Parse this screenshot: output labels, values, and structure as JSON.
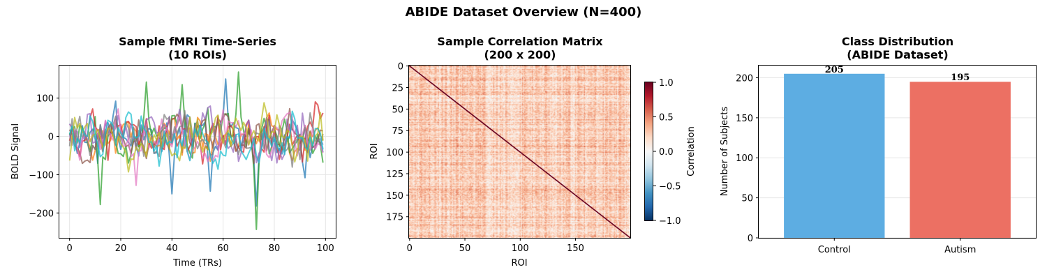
{
  "figure": {
    "suptitle": "ABIDE Dataset Overview (N=400)"
  },
  "chart_data": [
    {
      "type": "line",
      "title_line1": "Sample fMRI Time-Series",
      "title_line2": "(10 ROIs)",
      "xlabel": "Time (TRs)",
      "ylabel": "BOLD Signal",
      "xlim": [
        -4,
        104
      ],
      "ylim": [
        -265,
        185
      ],
      "xticks": [
        0,
        20,
        40,
        60,
        80,
        100
      ],
      "yticks": [
        100,
        0,
        -100,
        -200
      ],
      "ytick_labels": [
        "100",
        "0",
        "−100",
        "−200"
      ],
      "grid": true,
      "n_series": 10,
      "n_points": 100,
      "colors": [
        "#1f77b4",
        "#ff7f0e",
        "#2ca02c",
        "#d62728",
        "#9467bd",
        "#8c564b",
        "#e377c2",
        "#7f7f7f",
        "#bcbd22",
        "#17becf"
      ],
      "series_peaks": [
        {
          "series": 2,
          "x": 66,
          "y": 168
        },
        {
          "series": 0,
          "x": 61,
          "y": 150
        },
        {
          "series": 2,
          "x": 30,
          "y": 142
        },
        {
          "series": 2,
          "x": 44,
          "y": 135
        },
        {
          "series": 2,
          "x": 73,
          "y": -243
        },
        {
          "series": 0,
          "x": 73,
          "y": -182
        },
        {
          "series": 2,
          "x": 12,
          "y": -178
        },
        {
          "series": 0,
          "x": 40,
          "y": -150
        },
        {
          "series": 0,
          "x": 55,
          "y": -143
        },
        {
          "series": 6,
          "x": 26,
          "y": -128
        }
      ]
    },
    {
      "type": "heatmap",
      "title_line1": "Sample Correlation Matrix",
      "title_line2": "(200 x 200)",
      "xlabel": "ROI",
      "ylabel": "ROI",
      "size": 200,
      "xticks": [
        0,
        50,
        100,
        150
      ],
      "yticks": [
        0,
        25,
        50,
        75,
        100,
        125,
        150,
        175
      ],
      "colorbar": {
        "label": "Correlation",
        "vmin": -1.0,
        "vmax": 1.0,
        "ticks": [
          1.0,
          0.5,
          0.0,
          -0.5,
          -1.0
        ],
        "tick_labels": [
          "1.0",
          "0.5",
          "0.0",
          "−0.5",
          "−1.0"
        ],
        "colormap": "RdBu_r"
      },
      "diagonal_value": 1.0,
      "typical_offdiag_range": [
        0.0,
        0.5
      ]
    },
    {
      "type": "bar",
      "title_line1": "Class Distribution",
      "title_line2": "(ABIDE Dataset)",
      "xlabel": "",
      "ylabel": "Number of Subjects",
      "categories": [
        "Control",
        "Autism"
      ],
      "values": [
        205,
        195
      ],
      "value_labels": [
        "205",
        "195"
      ],
      "colors": [
        "#5dade2",
        "#ec7063"
      ],
      "ylim": [
        0,
        215.25
      ],
      "yticks": [
        0,
        50,
        100,
        150,
        200
      ],
      "grid": true
    }
  ]
}
